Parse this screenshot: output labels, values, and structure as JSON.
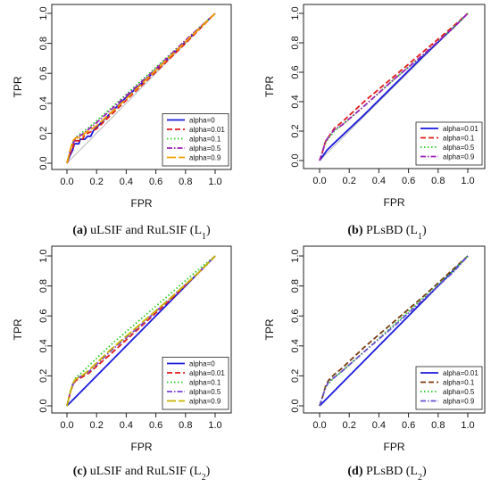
{
  "chart_data": [
    {
      "type": "line",
      "caption_letter": "(a)",
      "caption_text": "uLSIF and RuLSIF (L",
      "caption_sub": "1",
      "caption_close": ")",
      "xlabel": "FPR",
      "ylabel": "TPR",
      "xlim": [
        0,
        1
      ],
      "ylim": [
        0,
        1
      ],
      "xticks": [
        "0.0",
        "0.2",
        "0.4",
        "0.6",
        "0.8",
        "1.0"
      ],
      "yticks": [
        "0.0",
        "0.2",
        "0.4",
        "0.6",
        "0.8",
        "1.0"
      ],
      "legend_position": "bottom-right",
      "reference_line": {
        "x": [
          0,
          1
        ],
        "y": [
          0,
          1
        ],
        "color": "#bbbbbb"
      },
      "series": [
        {
          "name": "alpha=0",
          "color": "#1a1adc",
          "dash": "solid",
          "x": [
            0,
            0.02,
            0.04,
            0.05,
            0.08,
            0.09,
            0.12,
            0.14,
            0.16,
            0.18,
            0.25,
            0.4,
            0.6,
            0.8,
            1.0
          ],
          "y": [
            0,
            0.05,
            0.09,
            0.13,
            0.13,
            0.16,
            0.16,
            0.18,
            0.18,
            0.22,
            0.29,
            0.44,
            0.62,
            0.81,
            1.0
          ]
        },
        {
          "name": "alpha=0.01",
          "color": "#e01c1c",
          "dash": "dashed",
          "x": [
            0,
            0.02,
            0.04,
            0.05,
            0.1,
            0.12,
            0.2,
            0.4,
            0.6,
            0.8,
            1.0
          ],
          "y": [
            0,
            0.06,
            0.1,
            0.15,
            0.15,
            0.19,
            0.23,
            0.42,
            0.61,
            0.8,
            1.0
          ]
        },
        {
          "name": "alpha=0.1",
          "color": "#22cc22",
          "dash": "dotted",
          "x": [
            0,
            0.02,
            0.04,
            0.06,
            0.08,
            0.15,
            0.3,
            0.5,
            0.7,
            0.9,
            1.0
          ],
          "y": [
            0,
            0.08,
            0.14,
            0.17,
            0.19,
            0.24,
            0.37,
            0.55,
            0.73,
            0.91,
            1.0
          ]
        },
        {
          "name": "alpha=0.5",
          "color": "#9a1fb5",
          "dash": "dashdot",
          "x": [
            0,
            0.02,
            0.04,
            0.06,
            0.1,
            0.2,
            0.4,
            0.6,
            0.8,
            1.0
          ],
          "y": [
            0,
            0.07,
            0.13,
            0.17,
            0.19,
            0.27,
            0.45,
            0.63,
            0.82,
            1.0
          ]
        },
        {
          "name": "alpha=0.9",
          "color": "#f0a000",
          "dash": "longdash",
          "x": [
            0,
            0.02,
            0.04,
            0.06,
            0.1,
            0.12,
            0.2,
            0.4,
            0.6,
            0.8,
            1.0
          ],
          "y": [
            0,
            0.08,
            0.15,
            0.17,
            0.17,
            0.2,
            0.25,
            0.43,
            0.62,
            0.81,
            1.0
          ]
        }
      ]
    },
    {
      "type": "line",
      "caption_letter": "(b)",
      "caption_text": "PLsBD (L",
      "caption_sub": "1",
      "caption_close": ")",
      "xlabel": "FPR",
      "ylabel": "TPR",
      "xlim": [
        0,
        1
      ],
      "ylim": [
        0,
        1
      ],
      "xticks": [
        "0.0",
        "0.2",
        "0.4",
        "0.6",
        "0.8",
        "1.0"
      ],
      "yticks": [
        "0.0",
        "0.2",
        "0.4",
        "0.6",
        "0.8",
        "1.0"
      ],
      "legend_position": "bottom-right",
      "reference_line": {
        "x": [
          0,
          1
        ],
        "y": [
          0,
          1
        ],
        "color": "#bbbbbb"
      },
      "series": [
        {
          "name": "alpha=0.01",
          "color": "#1a1adc",
          "dash": "solid",
          "x": [
            0,
            0.05,
            0.1,
            0.3,
            0.5,
            0.7,
            0.9,
            1.0
          ],
          "y": [
            0,
            0.07,
            0.12,
            0.31,
            0.51,
            0.71,
            0.9,
            1.0
          ]
        },
        {
          "name": "alpha=0.1",
          "color": "#e01c1c",
          "dash": "dashed",
          "x": [
            0,
            0.02,
            0.04,
            0.06,
            0.1,
            0.15,
            0.3,
            0.5,
            0.7,
            0.9,
            1.0
          ],
          "y": [
            0,
            0.06,
            0.13,
            0.16,
            0.22,
            0.26,
            0.4,
            0.57,
            0.74,
            0.91,
            1.0
          ]
        },
        {
          "name": "alpha=0.5",
          "color": "#22cc22",
          "dash": "dotted",
          "x": [
            0,
            0.02,
            0.04,
            0.06,
            0.1,
            0.15,
            0.3,
            0.5,
            0.7,
            0.9,
            1.0
          ],
          "y": [
            0,
            0.06,
            0.12,
            0.15,
            0.2,
            0.24,
            0.37,
            0.55,
            0.72,
            0.9,
            1.0
          ]
        },
        {
          "name": "alpha=0.9",
          "color": "#9a1fb5",
          "dash": "dashdot",
          "x": [
            0,
            0.02,
            0.04,
            0.06,
            0.1,
            0.15,
            0.3,
            0.5,
            0.7,
            0.9,
            1.0
          ],
          "y": [
            0,
            0.06,
            0.13,
            0.16,
            0.21,
            0.24,
            0.37,
            0.55,
            0.72,
            0.9,
            1.0
          ]
        }
      ]
    },
    {
      "type": "line",
      "caption_letter": "(c)",
      "caption_text": "uLSIF and RuLSIF (L",
      "caption_sub": "2",
      "caption_close": ")",
      "xlabel": "FPR",
      "ylabel": "TPR",
      "xlim": [
        0,
        1
      ],
      "ylim": [
        0,
        1
      ],
      "xticks": [
        "0.0",
        "0.2",
        "0.4",
        "0.6",
        "0.8",
        "1.0"
      ],
      "yticks": [
        "0.0",
        "0.2",
        "0.4",
        "0.6",
        "0.8",
        "1.0"
      ],
      "legend_position": "bottom-right",
      "reference_line": {
        "x": [
          0,
          1
        ],
        "y": [
          0,
          1
        ],
        "color": "#bbbbbb"
      },
      "series": [
        {
          "name": "alpha=0",
          "color": "#1a1adc",
          "dash": "solid",
          "x": [
            0,
            0.1,
            0.3,
            0.5,
            0.7,
            0.9,
            1.0
          ],
          "y": [
            0,
            0.1,
            0.3,
            0.5,
            0.7,
            0.9,
            1.0
          ]
        },
        {
          "name": "alpha=0.01",
          "color": "#e01c1c",
          "dash": "dashed",
          "x": [
            0,
            0.02,
            0.04,
            0.06,
            0.1,
            0.15,
            0.3,
            0.5,
            0.7,
            0.9,
            1.0
          ],
          "y": [
            0,
            0.08,
            0.14,
            0.17,
            0.19,
            0.22,
            0.35,
            0.53,
            0.71,
            0.9,
            1.0
          ]
        },
        {
          "name": "alpha=0.1",
          "color": "#22cc22",
          "dash": "dotted",
          "x": [
            0,
            0.02,
            0.04,
            0.06,
            0.1,
            0.15,
            0.3,
            0.5,
            0.7,
            0.9,
            1.0
          ],
          "y": [
            0,
            0.09,
            0.15,
            0.19,
            0.22,
            0.27,
            0.41,
            0.58,
            0.75,
            0.92,
            1.0
          ]
        },
        {
          "name": "alpha=0.5",
          "color": "#7a3fd8",
          "dash": "dashdot",
          "x": [
            0,
            0.02,
            0.04,
            0.06,
            0.1,
            0.15,
            0.3,
            0.5,
            0.7,
            0.9,
            1.0
          ],
          "y": [
            0,
            0.08,
            0.14,
            0.18,
            0.2,
            0.23,
            0.37,
            0.54,
            0.72,
            0.9,
            1.0
          ]
        },
        {
          "name": "alpha=0.9",
          "color": "#c8b400",
          "dash": "longdash",
          "x": [
            0,
            0.02,
            0.04,
            0.06,
            0.1,
            0.15,
            0.3,
            0.5,
            0.7,
            0.9,
            1.0
          ],
          "y": [
            0,
            0.08,
            0.15,
            0.18,
            0.2,
            0.24,
            0.38,
            0.55,
            0.72,
            0.9,
            1.0
          ]
        }
      ]
    },
    {
      "type": "line",
      "caption_letter": "(d)",
      "caption_text": "PLsBD (L",
      "caption_sub": "2",
      "caption_close": ")",
      "xlabel": "FPR",
      "ylabel": "TPR",
      "xlim": [
        0,
        1
      ],
      "ylim": [
        0,
        1
      ],
      "xticks": [
        "0.0",
        "0.2",
        "0.4",
        "0.6",
        "0.8",
        "1.0"
      ],
      "yticks": [
        "0.0",
        "0.2",
        "0.4",
        "0.6",
        "0.8",
        "1.0"
      ],
      "legend_position": "bottom-right",
      "reference_line": {
        "x": [
          0,
          1
        ],
        "y": [
          0,
          1
        ],
        "color": "#bbbbbb"
      },
      "series": [
        {
          "name": "alpha=0.01",
          "color": "#1a1adc",
          "dash": "solid",
          "x": [
            0,
            0.1,
            0.3,
            0.5,
            0.7,
            0.9,
            1.0
          ],
          "y": [
            0,
            0.1,
            0.3,
            0.5,
            0.7,
            0.9,
            1.0
          ]
        },
        {
          "name": "alpha=0.1",
          "color": "#7a3a10",
          "dash": "dashed",
          "x": [
            0,
            0.02,
            0.04,
            0.06,
            0.1,
            0.15,
            0.3,
            0.5,
            0.7,
            0.9,
            1.0
          ],
          "y": [
            0,
            0.06,
            0.13,
            0.17,
            0.21,
            0.25,
            0.39,
            0.56,
            0.73,
            0.91,
            1.0
          ]
        },
        {
          "name": "alpha=0.5",
          "color": "#22cc22",
          "dash": "dotted",
          "x": [
            0,
            0.02,
            0.04,
            0.06,
            0.1,
            0.15,
            0.3,
            0.5,
            0.7,
            0.9,
            1.0
          ],
          "y": [
            0,
            0.06,
            0.12,
            0.15,
            0.19,
            0.23,
            0.36,
            0.54,
            0.72,
            0.9,
            1.0
          ]
        },
        {
          "name": "alpha=0.9",
          "color": "#6a4fd0",
          "dash": "dashdot",
          "x": [
            0,
            0.02,
            0.04,
            0.06,
            0.1,
            0.15,
            0.3,
            0.5,
            0.7,
            0.9,
            1.0
          ],
          "y": [
            0,
            0.06,
            0.12,
            0.16,
            0.19,
            0.23,
            0.36,
            0.53,
            0.71,
            0.89,
            1.0
          ]
        }
      ]
    }
  ]
}
